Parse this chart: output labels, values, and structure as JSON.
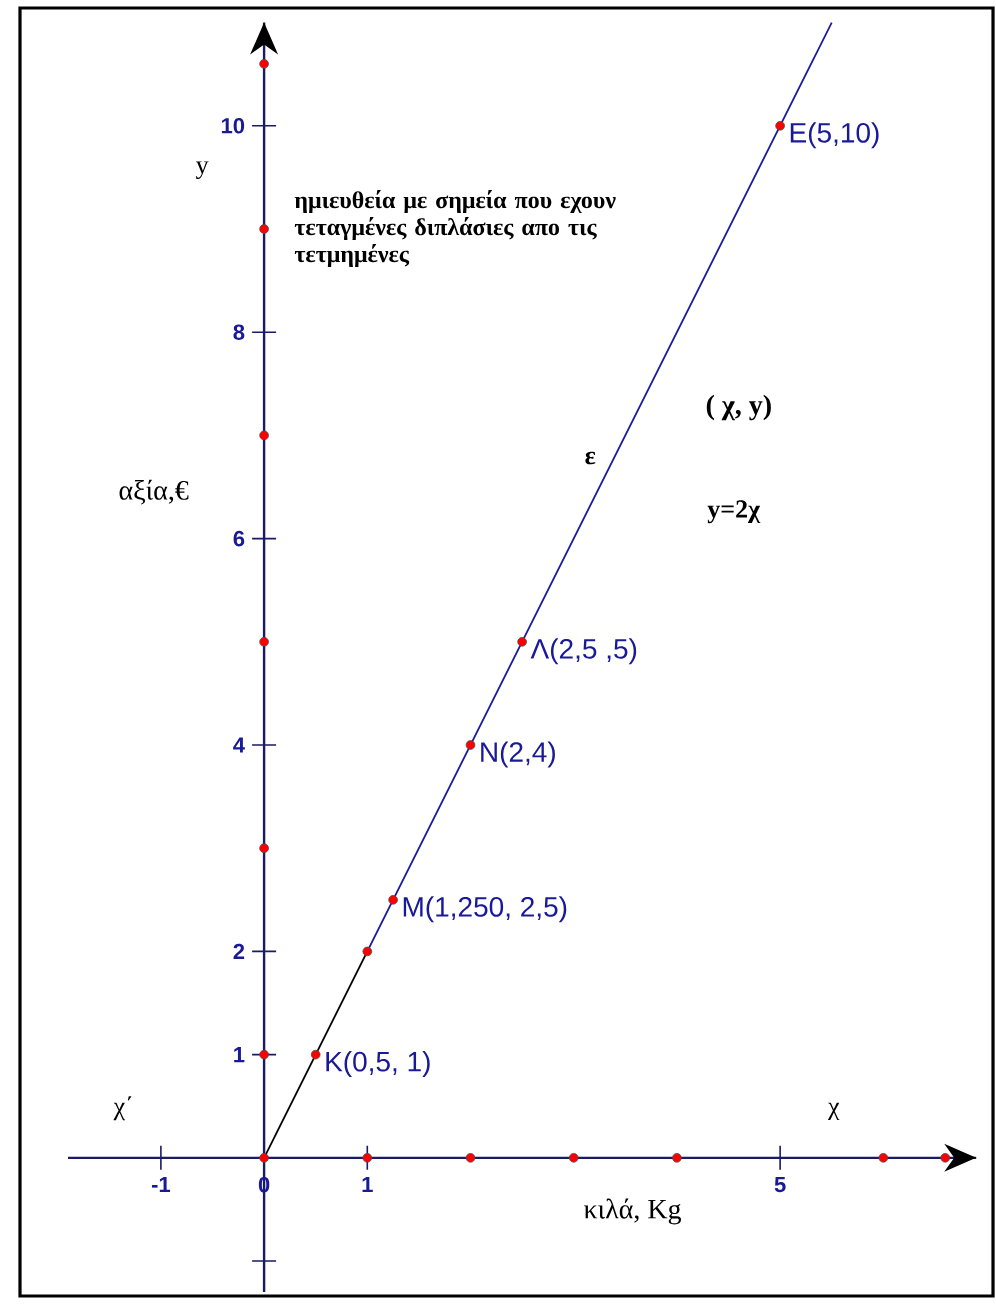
{
  "chart_data": {
    "type": "line",
    "xlabel": "κιλά, Kg",
    "ylabel": "αξία,€",
    "xlim": [
      -1.9,
      6.9
    ],
    "ylim": [
      -1.3,
      11
    ],
    "xticks": [
      {
        "value": -1,
        "label": "-1"
      },
      {
        "value": 0,
        "label": "0"
      },
      {
        "value": 1,
        "label": "1"
      },
      {
        "value": 5,
        "label": "5"
      }
    ],
    "yticks": [
      {
        "value": -1,
        "label": null
      },
      {
        "value": 1,
        "label": "1"
      },
      2,
      4,
      6,
      8,
      10
    ],
    "grid": false,
    "series": [
      {
        "color": "#1a1a99",
        "x": [
          1,
          5.5
        ],
        "values": [
          2,
          11
        ],
        "marker": "none"
      },
      {
        "color": "#000000",
        "x": [
          0,
          1
        ],
        "values": [
          0,
          2
        ],
        "marker": "none"
      },
      {
        "type": "scatter",
        "color": "#ff0000",
        "x": [
          0,
          0.5,
          1,
          1.25,
          2,
          2.5,
          5
        ],
        "values": [
          0,
          1,
          2,
          2.5,
          4,
          5,
          10
        ],
        "marker": "circle"
      },
      {
        "type": "scatter",
        "color": "#ff0000",
        "x": [
          1,
          2,
          3,
          4,
          6,
          6.6,
          0,
          0,
          0,
          0,
          0,
          0
        ],
        "values": [
          0,
          0,
          0,
          0,
          0,
          0,
          1,
          3,
          5,
          7,
          9,
          10.6
        ],
        "marker": "circle"
      }
    ],
    "annotations": [
      {
        "text": "E(5,10)",
        "x": 5,
        "y": 10
      },
      {
        "text": "Λ(2,5   ,5)",
        "x": 2.5,
        "y": 5
      },
      {
        "text": "N(2,4)",
        "x": 2,
        "y": 4
      },
      {
        "text": "M(1,250,   2,5)",
        "x": 1.25,
        "y": 2.5
      },
      {
        "text": "K(0,5, 1)",
        "x": 0.5,
        "y": 1
      },
      "y",
      "ημιευθεία με σημεία που εχουν τεταγμένες διπλάσιες απο    τις τετμημένες",
      "ε",
      "( χ, y)",
      "y=2χ",
      "χ΄",
      "χ"
    ]
  }
}
